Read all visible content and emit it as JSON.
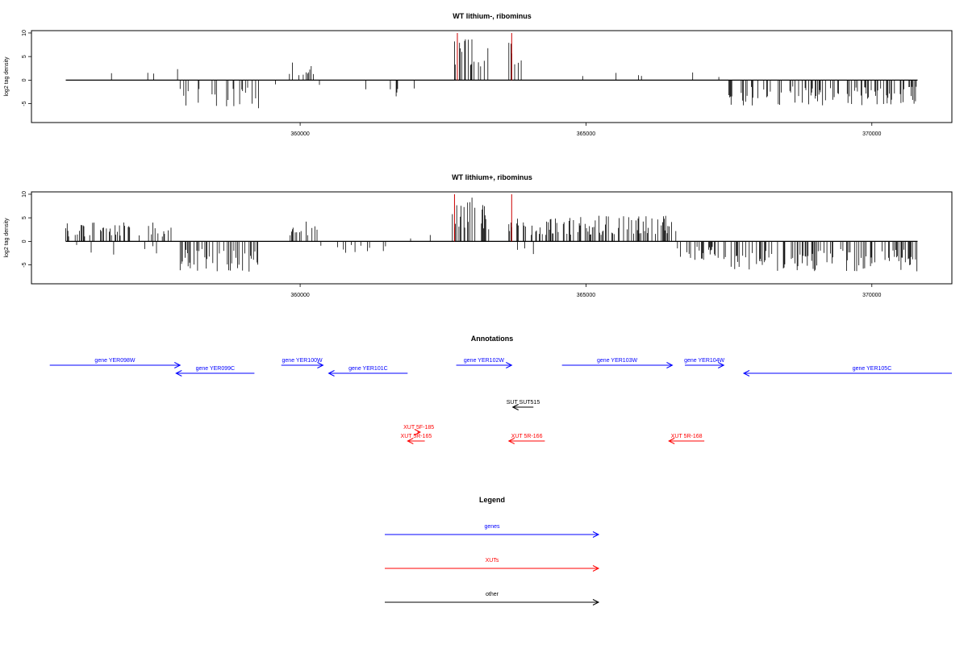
{
  "chart_data": [
    {
      "type": "bar",
      "title": "WT lithium-, ribominus",
      "ylabel": "log2 tag density",
      "xlabel": "",
      "xlim": [
        355300,
        371400
      ],
      "ylim": [
        -9,
        10.5
      ],
      "xticks": [
        360000,
        365000,
        370000
      ],
      "xtick_labels": [
        "360000",
        "365000",
        "370000"
      ],
      "yticks": [
        10,
        5,
        0,
        -5
      ],
      "ytick_labels": [
        "10",
        "5",
        "0",
        "-5"
      ],
      "grid": false,
      "highlight_lines": [
        {
          "x": 362750,
          "value": 10,
          "color": "#cc0000"
        },
        {
          "x": 363700,
          "value": 10,
          "color": "#cc0000"
        }
      ],
      "signal_regions": [
        {
          "x0": 355900,
          "x1": 357900,
          "sign": 1,
          "density": 0.012,
          "max": 3.5
        },
        {
          "x0": 357900,
          "x1": 359300,
          "sign": -1,
          "density": 0.25,
          "max": 6
        },
        {
          "x0": 359300,
          "x1": 359800,
          "sign": -1,
          "density": 0.012,
          "max": 3
        },
        {
          "x0": 359800,
          "x1": 360300,
          "sign": 1,
          "density": 0.18,
          "max": 4
        },
        {
          "x0": 360300,
          "x1": 361400,
          "sign": -1,
          "density": 0.02,
          "max": 2.5
        },
        {
          "x0": 361400,
          "x1": 362000,
          "sign": -1,
          "density": 0.03,
          "max": 4
        },
        {
          "x0": 362700,
          "x1": 363300,
          "sign": 1,
          "density": 0.35,
          "max": 9.5
        },
        {
          "x0": 363650,
          "x1": 363900,
          "sign": 1,
          "density": 0.5,
          "max": 8
        },
        {
          "x0": 363900,
          "x1": 366600,
          "sign": 1,
          "density": 0.02,
          "max": 3.5
        },
        {
          "x0": 366600,
          "x1": 367500,
          "sign": 1,
          "density": 0.02,
          "max": 2.5
        },
        {
          "x0": 367500,
          "x1": 370800,
          "sign": -1,
          "density": 0.3,
          "max": 5.5
        }
      ]
    },
    {
      "type": "bar",
      "title": "WT lithium+, ribominus",
      "ylabel": "log2 tag density",
      "xlabel": "",
      "xlim": [
        355300,
        371400
      ],
      "ylim": [
        -9,
        10.5
      ],
      "xticks": [
        360000,
        365000,
        370000
      ],
      "xtick_labels": [
        "360000",
        "365000",
        "370000"
      ],
      "yticks": [
        10,
        5,
        0,
        -5
      ],
      "ytick_labels": [
        "10",
        "5",
        "0",
        "-5"
      ],
      "grid": false,
      "highlight_lines": [
        {
          "x": 362700,
          "value": 10,
          "color": "#cc0000"
        },
        {
          "x": 363700,
          "value": 10,
          "color": "#cc0000"
        }
      ],
      "signal_regions": [
        {
          "x0": 355900,
          "x1": 357900,
          "sign": 1,
          "density": 0.3,
          "max": 4
        },
        {
          "x0": 355900,
          "x1": 357900,
          "sign": -1,
          "density": 0.04,
          "max": 3
        },
        {
          "x0": 357900,
          "x1": 359300,
          "sign": -1,
          "density": 0.3,
          "max": 6.5
        },
        {
          "x0": 359800,
          "x1": 360300,
          "sign": 1,
          "density": 0.3,
          "max": 4.5
        },
        {
          "x0": 360300,
          "x1": 361500,
          "sign": -1,
          "density": 0.12,
          "max": 3
        },
        {
          "x0": 361500,
          "x1": 362500,
          "sign": 1,
          "density": 0.02,
          "max": 2
        },
        {
          "x0": 362650,
          "x1": 363300,
          "sign": 1,
          "density": 0.4,
          "max": 9.5
        },
        {
          "x0": 363650,
          "x1": 366600,
          "sign": 1,
          "density": 0.4,
          "max": 5.5
        },
        {
          "x0": 363800,
          "x1": 364100,
          "sign": -1,
          "density": 0.15,
          "max": 3
        },
        {
          "x0": 366600,
          "x1": 367500,
          "sign": -1,
          "density": 0.35,
          "max": 4
        },
        {
          "x0": 367500,
          "x1": 370800,
          "sign": -1,
          "density": 0.35,
          "max": 6.5
        }
      ]
    }
  ],
  "annotations": {
    "title": "Annotations",
    "genes_color": "#0000ff",
    "xut_color": "#ff0000",
    "other_color": "#000000",
    "features": [
      {
        "label": "gene YER098W",
        "category": "genes",
        "start": 355620,
        "end": 357900,
        "strand": "+",
        "row": 0
      },
      {
        "label": "gene YER099C",
        "category": "genes",
        "start": 357830,
        "end": 359200,
        "strand": "-",
        "row": 1
      },
      {
        "label": "gene YER100W",
        "category": "genes",
        "start": 359670,
        "end": 360400,
        "strand": "+",
        "row": 0
      },
      {
        "label": "gene YER101C",
        "category": "genes",
        "start": 360500,
        "end": 361880,
        "strand": "-",
        "row": 1
      },
      {
        "label": "gene YER102W",
        "category": "genes",
        "start": 362730,
        "end": 363700,
        "strand": "+",
        "row": 0
      },
      {
        "label": "gene YER103W",
        "category": "genes",
        "start": 364580,
        "end": 366510,
        "strand": "+",
        "row": 0
      },
      {
        "label": "gene YER104W",
        "category": "genes",
        "start": 366730,
        "end": 367410,
        "strand": "+",
        "row": 0
      },
      {
        "label": "gene YER105C",
        "category": "genes",
        "start": 367760,
        "end": 371400,
        "strand": "-",
        "row": 1
      },
      {
        "label": "SUT SUT515",
        "category": "other",
        "start": 363720,
        "end": 364080,
        "strand": "-",
        "row": 2
      },
      {
        "label": "XUT 5F-185",
        "category": "xuts",
        "start": 362050,
        "end": 362100,
        "strand": "+",
        "row": 3
      },
      {
        "label": "XUT 5R-165",
        "category": "xuts",
        "start": 361880,
        "end": 362180,
        "strand": "-",
        "row": 4
      },
      {
        "label": "XUT 5R-166",
        "category": "xuts",
        "start": 363650,
        "end": 364280,
        "strand": "-",
        "row": 4
      },
      {
        "label": "XUT 5R-168",
        "category": "xuts",
        "start": 366450,
        "end": 367070,
        "strand": "-",
        "row": 4
      }
    ]
  },
  "legend": {
    "title": "Legend",
    "items": [
      {
        "label": "genes",
        "color": "#0000ff"
      },
      {
        "label": "XUTs",
        "color": "#ff0000"
      },
      {
        "label": "other",
        "color": "#000000"
      }
    ]
  }
}
